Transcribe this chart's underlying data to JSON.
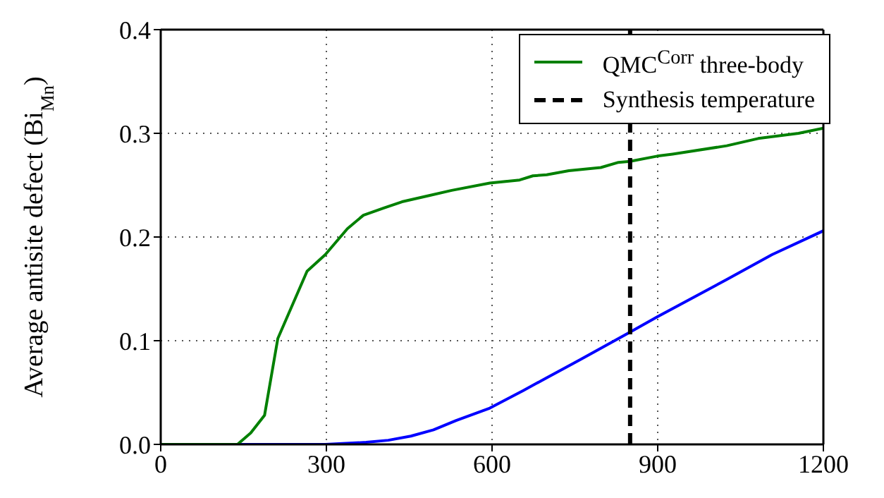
{
  "chart_data": {
    "type": "line",
    "ylabel": "Average antisite defect (Bi$_{Mn}$)",
    "xlim": [
      0,
      1200
    ],
    "xticks": [
      0,
      300,
      600,
      900,
      1200
    ],
    "ylim": [
      0,
      0.4
    ],
    "yticks": [
      {
        "value": 0,
        "label": "0.0"
      },
      0.1,
      0.2,
      0.3,
      0.4
    ],
    "series": [
      {
        "color": "#0000ff",
        "x": [
          0,
          298,
          372,
          412,
          453,
          494,
          535,
          596,
          657,
          698,
          747,
          849,
          899,
          1025,
          1107,
          1200
        ],
        "values": [
          0,
          0,
          0.002,
          0.004,
          0.008,
          0.014,
          0.023,
          0.035,
          0.052,
          0.064,
          0.078,
          0.108,
          0.123,
          0.159,
          0.183,
          0.206
        ]
      },
      {
        "name": "QMC$^{Corr}$ three-body",
        "color": "#008000",
        "x": [
          0,
          139,
          163,
          188,
          212,
          265,
          298,
          338,
          367,
          404,
          437,
          486,
          527,
          596,
          650,
          674,
          699,
          739,
          797,
          829,
          850,
          899,
          927,
          1025,
          1082,
          1155,
          1200
        ],
        "values": [
          0,
          0,
          0.011,
          0.028,
          0.102,
          0.167,
          0.183,
          0.208,
          0.221,
          0.228,
          0.234,
          0.24,
          0.245,
          0.252,
          0.255,
          0.259,
          0.26,
          0.264,
          0.267,
          0.272,
          0.273,
          0.278,
          0.28,
          0.288,
          0.295,
          0.3,
          0.305
        ]
      }
    ],
    "ref_lines": [
      {
        "axis": "x",
        "value": 850,
        "label": "Synthesis temperature",
        "color": "#000000",
        "line_style": "dashed"
      }
    ],
    "grid": true,
    "legend": "top right",
    "marker": "none",
    "line_style": "solid"
  }
}
